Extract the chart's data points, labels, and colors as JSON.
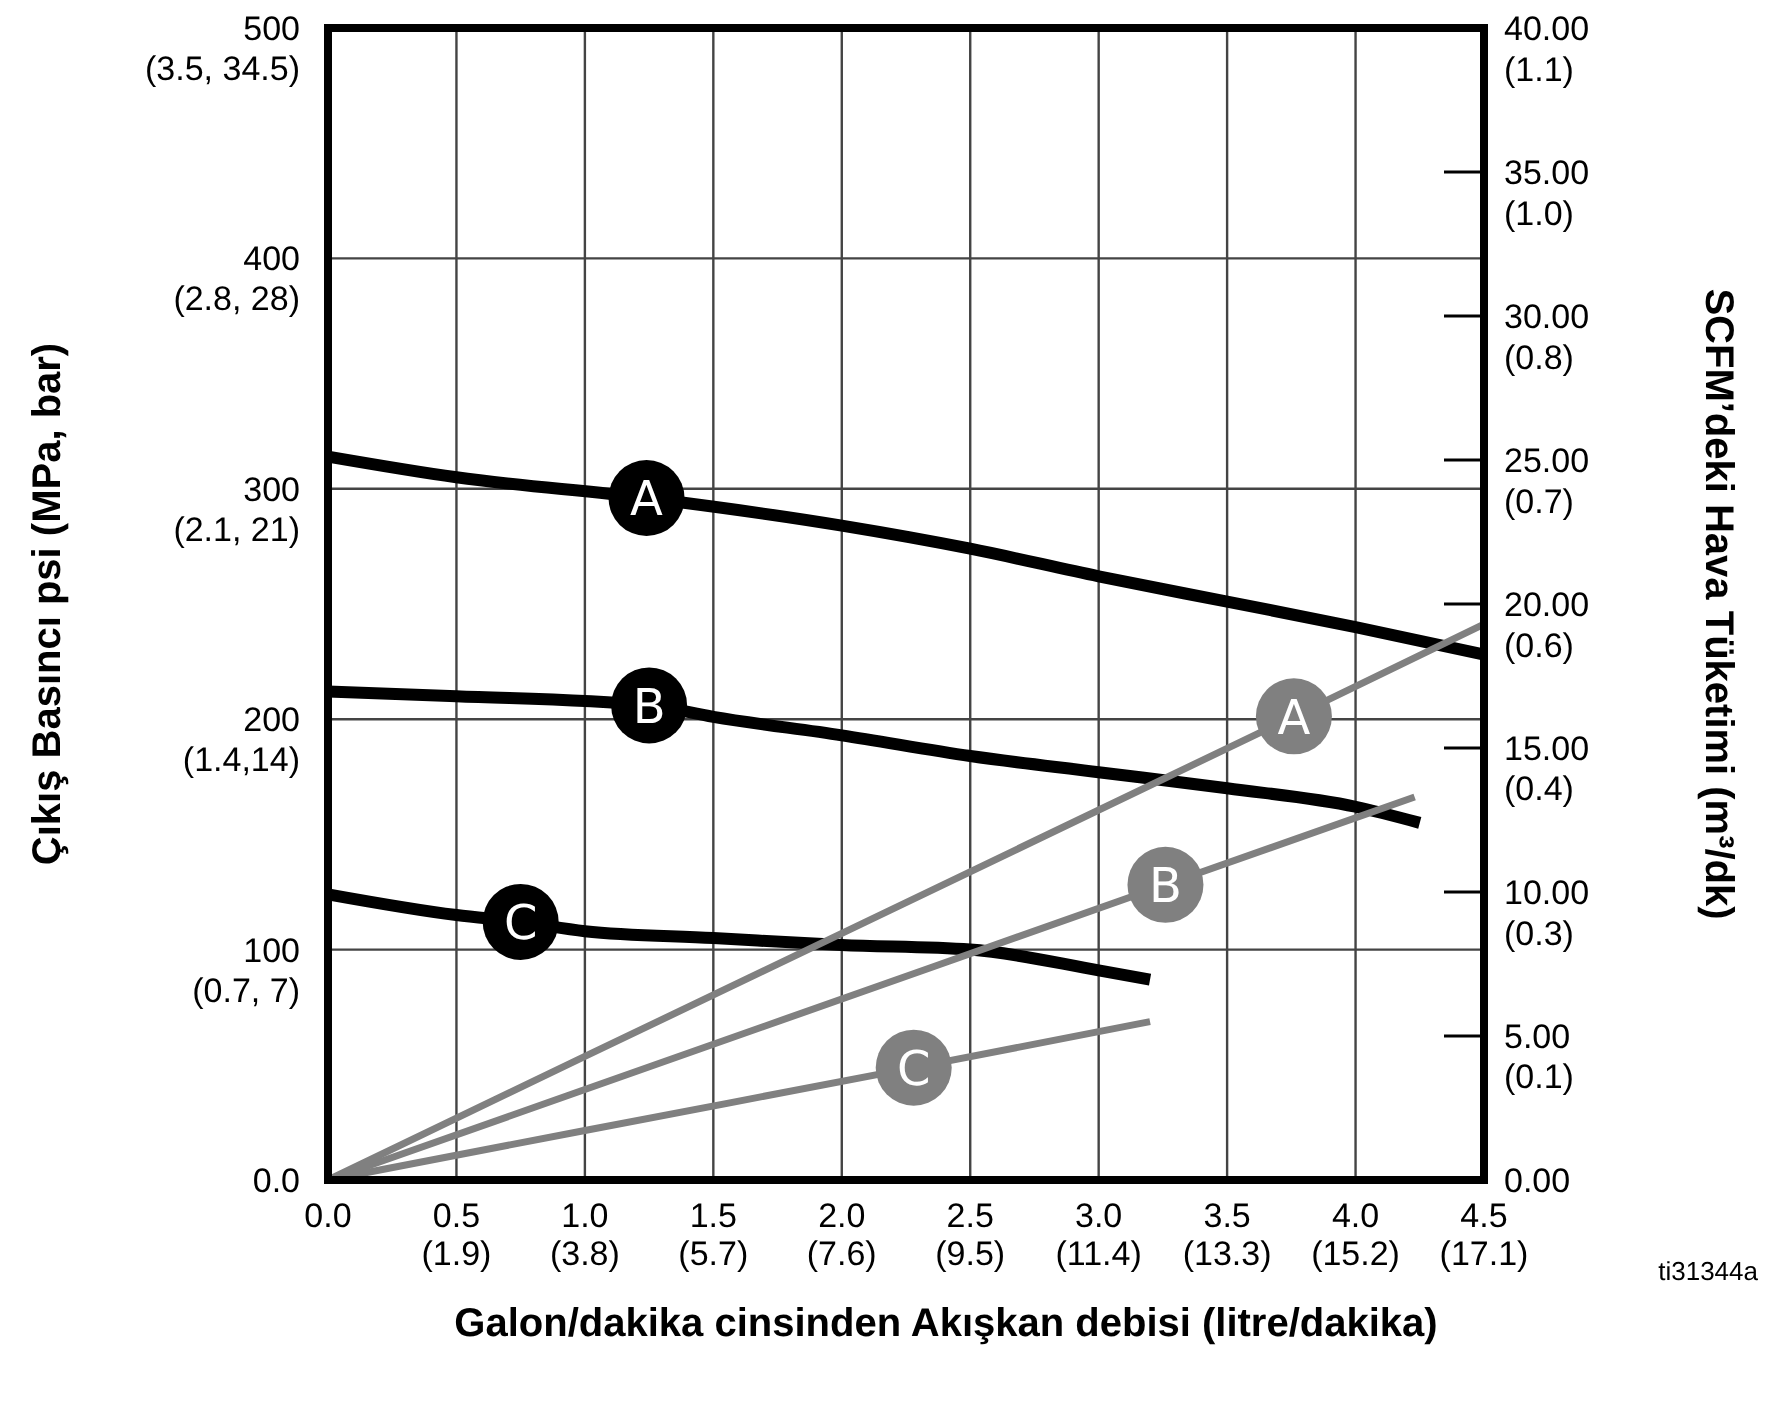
{
  "chart_data": {
    "type": "line",
    "xlabel": "Galon/dakika cinsinden Akışkan debisi (litre/dakika)",
    "ylabel": "Çıkış Basıncı psi (MPa, bar)",
    "y2label": "SCFM’deki Hava Tüketimi (m³/dk)",
    "xlim": [
      0,
      4.5
    ],
    "ylim": [
      0,
      500
    ],
    "y2lim": [
      0,
      40
    ],
    "xticks": [
      {
        "value": 0,
        "label": "0.0"
      },
      {
        "value": 0.5,
        "label": "0.5"
      },
      {
        "value": 1,
        "label": "1.0"
      },
      {
        "value": 1.5,
        "label": "1.5"
      },
      {
        "value": 2,
        "label": "2.0"
      },
      {
        "value": 2.5,
        "label": "2.5"
      },
      {
        "value": 3,
        "label": "3.0"
      },
      {
        "value": 3.5,
        "label": "3.5"
      },
      {
        "value": 4,
        "label": "4.0"
      },
      {
        "value": 4.5,
        "label": "4.5"
      }
    ],
    "yticks": [
      {
        "value": 0,
        "label": "0.0"
      },
      100,
      200,
      300,
      400,
      500
    ],
    "y2ticks": [
      {
        "value": 0,
        "label": "0.00"
      },
      {
        "value": 5,
        "label": "5.00"
      },
      {
        "value": 10,
        "label": "10.00"
      },
      {
        "value": 15,
        "label": "15.00"
      },
      {
        "value": 20,
        "label": "20.00"
      },
      {
        "value": 25,
        "label": "25.00"
      },
      {
        "value": 30,
        "label": "30.00"
      },
      {
        "value": 35,
        "label": "35.00"
      },
      {
        "value": 40,
        "label": "40.00"
      }
    ],
    "y3lim": [
      0.04,
      1.173
    ],
    "y3ticks": [
      {
        "value": 0.142,
        "label": "(0.1)"
      },
      {
        "value": 0.283,
        "label": "(0.3)"
      },
      {
        "value": 0.425,
        "label": "(0.4)"
      },
      {
        "value": 0.566,
        "label": "(0.6)"
      },
      {
        "value": 0.708,
        "label": "(0.7)"
      },
      {
        "value": 0.849,
        "label": "(0.8)"
      },
      {
        "value": 0.991,
        "label": "(1.0)"
      },
      {
        "value": 1.133,
        "label": "(1.1)"
      }
    ],
    "x2lim": [
      0,
      17.1
    ],
    "x2ticks": [
      {
        "value": 1.9,
        "label": "(1.9)"
      },
      {
        "value": 3.8,
        "label": "(3.8)"
      },
      {
        "value": 5.7,
        "label": "(5.7)"
      },
      {
        "value": 7.6,
        "label": "(7.6)"
      },
      {
        "value": 9.5,
        "label": "(9.5)"
      },
      {
        "value": 11.4,
        "label": "(11.4)"
      },
      {
        "value": 13.3,
        "label": "(13.3)"
      },
      {
        "value": 15.2,
        "label": "(15.2)"
      },
      {
        "value": 17.1,
        "label": "(17.1)"
      }
    ],
    "grid": true,
    "legend": false,
    "marker": "none",
    "line_style": "solid",
    "series": [
      {
        "name": "A",
        "color": "#000000",
        "x": [
          0,
          0.5,
          1.24,
          2,
          2.5,
          3,
          3.5,
          4,
          4.5
        ],
        "values": [
          314,
          305,
          296,
          284,
          274,
          262,
          251,
          240,
          228
        ]
      },
      {
        "name": "B",
        "color": "#000000",
        "x": [
          0,
          0.5,
          1.25,
          1.5,
          2,
          2.5,
          3,
          3.5,
          4,
          4.25
        ],
        "values": [
          212,
          210,
          206,
          201,
          193,
          184,
          177,
          170,
          162,
          155
        ]
      },
      {
        "name": "C",
        "color": "#000000",
        "x": [
          0,
          0.5,
          0.75,
          1,
          1.5,
          2,
          2.5,
          3,
          3.2
        ],
        "values": [
          124,
          115,
          112,
          108,
          105,
          102,
          100,
          91,
          87
        ]
      },
      {
        "name": "A",
        "color": "#808080",
        "axis": "y2",
        "x": [
          0,
          1,
          3.76,
          4.5
        ],
        "values": [
          0,
          4.29,
          16.1,
          19.3
        ]
      },
      {
        "name": "B",
        "color": "#808080",
        "axis": "y2",
        "x": [
          0,
          1,
          3.26,
          4.23
        ],
        "values": [
          0,
          3.14,
          10.25,
          13.3
        ]
      },
      {
        "name": "C",
        "color": "#808080",
        "axis": "y2",
        "x": [
          0,
          1,
          2.28,
          3.2
        ],
        "values": [
          0,
          1.72,
          3.9,
          5.5
        ]
      }
    ],
    "annotations": [
      "ti31344a",
      "(0.7, 7)",
      "(1.4,14)",
      "(2.1, 21)",
      "(2.8, 28)",
      "(3.5, 34.5)"
    ]
  }
}
